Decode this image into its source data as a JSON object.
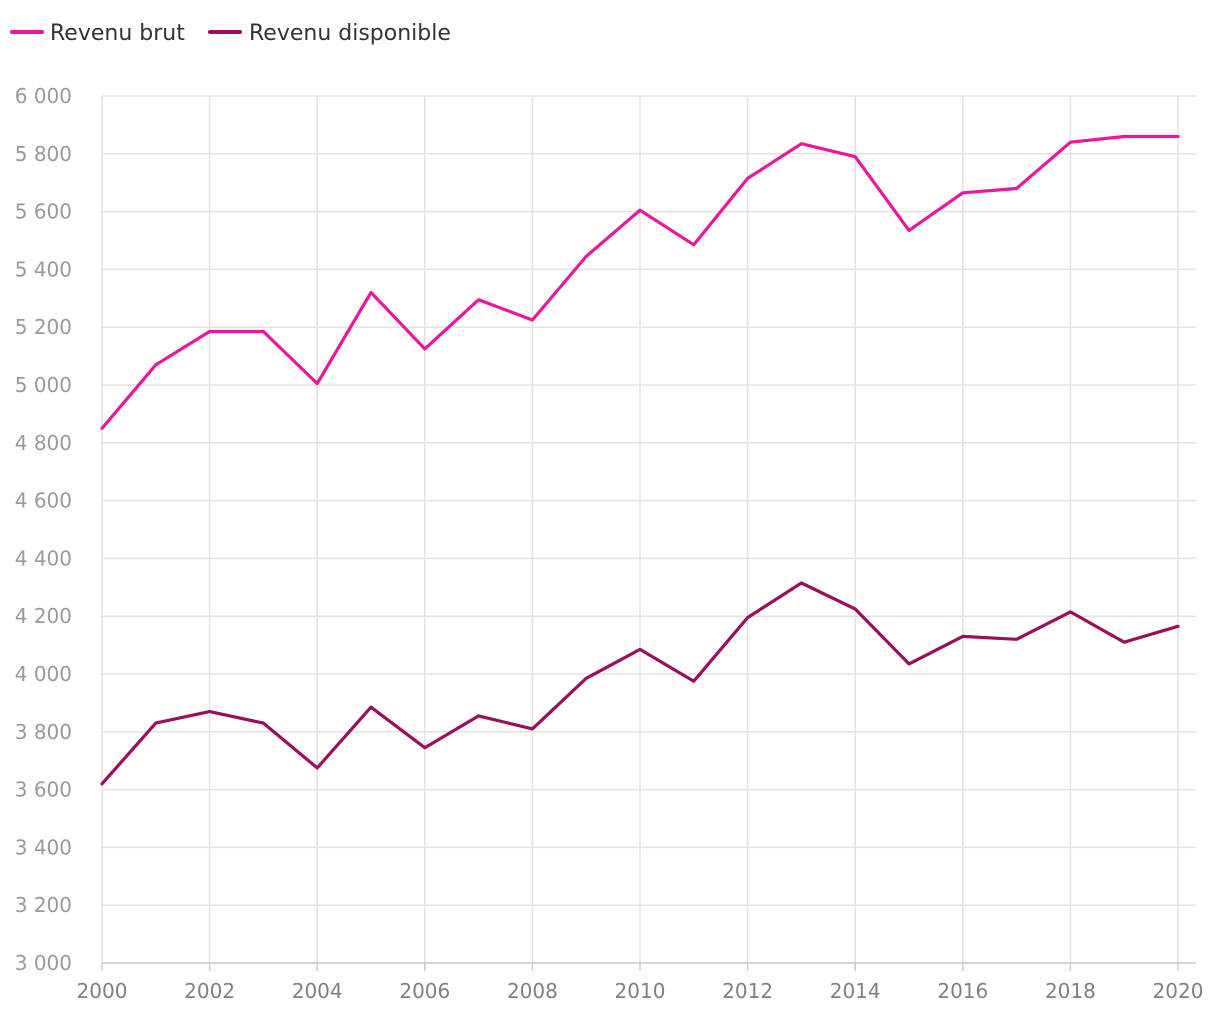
{
  "chart_data": {
    "type": "line",
    "title": "",
    "xlabel": "",
    "ylabel": "",
    "x": [
      2000,
      2001,
      2002,
      2003,
      2004,
      2005,
      2006,
      2007,
      2008,
      2009,
      2010,
      2011,
      2012,
      2013,
      2014,
      2015,
      2016,
      2017,
      2018,
      2019,
      2020
    ],
    "xticks": [
      "2000",
      "2002",
      "2004",
      "2006",
      "2008",
      "2010",
      "2012",
      "2014",
      "2016",
      "2018",
      "2020"
    ],
    "ylim": [
      3000,
      6000
    ],
    "yticks": [
      3000,
      3200,
      3400,
      3600,
      3800,
      4000,
      4200,
      4400,
      4600,
      4800,
      5000,
      5200,
      5400,
      5600,
      5800,
      6000
    ],
    "ytick_labels": [
      "3 000",
      "3 200",
      "3 400",
      "3 600",
      "3 800",
      "4 000",
      "4 200",
      "4 400",
      "4 600",
      "4 800",
      "5 000",
      "5 200",
      "5 400",
      "5 600",
      "5 800",
      "6 000"
    ],
    "grid": true,
    "legend_position": "top-left",
    "series": [
      {
        "name": "Revenu brut",
        "color": "#e8179b",
        "values": [
          4850,
          5070,
          5185,
          5185,
          5005,
          5320,
          5125,
          5295,
          5225,
          5445,
          5605,
          5485,
          5715,
          5835,
          5790,
          5535,
          5665,
          5680,
          5840,
          5860,
          5860
        ]
      },
      {
        "name": "Revenu disponible",
        "color": "#990f5a",
        "values": [
          3620,
          3830,
          3870,
          3830,
          3675,
          3885,
          3745,
          3855,
          3810,
          3985,
          4085,
          3975,
          4195,
          4315,
          4225,
          4035,
          4130,
          4120,
          4215,
          4110,
          4165
        ]
      }
    ]
  }
}
